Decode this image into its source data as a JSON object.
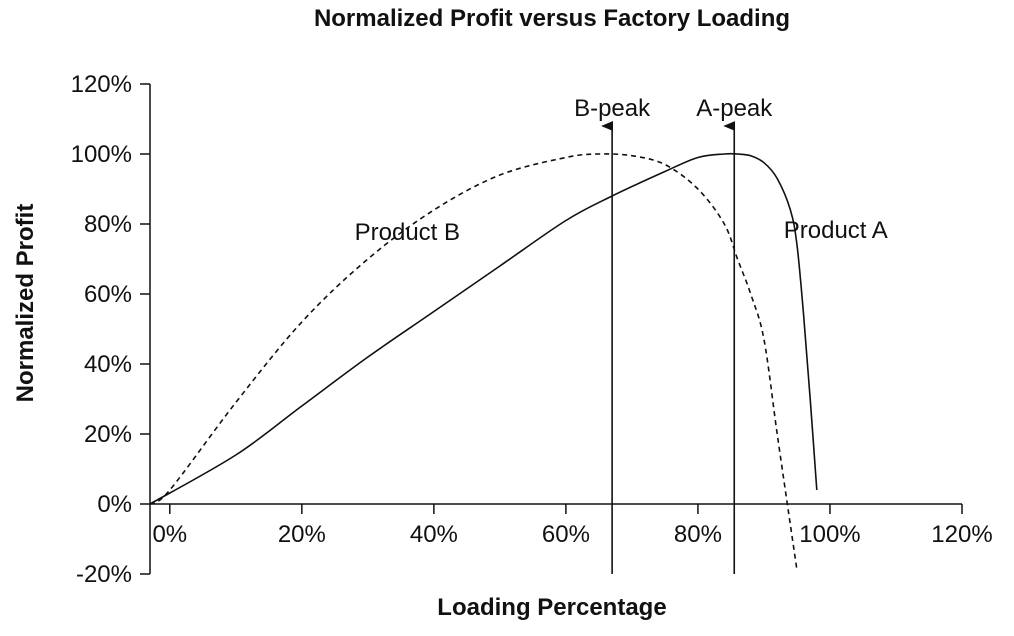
{
  "chart_data": {
    "type": "line",
    "title": "Normalized Profit versus Factory Loading",
    "xlabel": "Loading Percentage",
    "ylabel": "Normalized Profit",
    "xlim": [
      -0.03,
      1.2
    ],
    "ylim": [
      -0.2,
      1.2
    ],
    "x_ticks": [
      0,
      0.2,
      0.4,
      0.6,
      0.8,
      1.0,
      1.2
    ],
    "x_tick_labels": [
      "0%",
      "20%",
      "40%",
      "60%",
      "80%",
      "100%",
      "120%"
    ],
    "y_ticks": [
      -0.2,
      0,
      0.2,
      0.4,
      0.6,
      0.8,
      1.0,
      1.2
    ],
    "y_tick_labels": [
      "-20%",
      "0%",
      "20%",
      "40%",
      "60%",
      "80%",
      "100%",
      "120%"
    ],
    "grid": false,
    "series": [
      {
        "name": "Product A",
        "style": "solid",
        "color": "#111111",
        "x": [
          -0.03,
          0.1,
          0.2,
          0.3,
          0.4,
          0.5,
          0.6,
          0.67,
          0.75,
          0.8,
          0.84,
          0.86,
          0.88,
          0.9,
          0.92,
          0.94,
          0.95,
          0.96,
          0.97,
          0.98
        ],
        "y": [
          0.0,
          0.14,
          0.28,
          0.42,
          0.55,
          0.68,
          0.81,
          0.88,
          0.95,
          0.99,
          1.0,
          1.0,
          0.995,
          0.975,
          0.93,
          0.84,
          0.74,
          0.54,
          0.3,
          0.04
        ]
      },
      {
        "name": "Product B",
        "style": "dashed",
        "color": "#111111",
        "x": [
          -0.03,
          0.0,
          0.1,
          0.2,
          0.3,
          0.4,
          0.5,
          0.6,
          0.65,
          0.7,
          0.75,
          0.8,
          0.84,
          0.86,
          0.88,
          0.9,
          0.92,
          0.94,
          0.95
        ],
        "y": [
          0.0,
          0.04,
          0.29,
          0.52,
          0.7,
          0.84,
          0.94,
          0.99,
          1.0,
          0.995,
          0.97,
          0.9,
          0.8,
          0.7,
          0.6,
          0.47,
          0.2,
          -0.06,
          -0.19
        ]
      }
    ],
    "series_labels": [
      {
        "text": "Product A",
        "x": 0.93,
        "y": 0.76
      },
      {
        "text": "Product B",
        "x": 0.28,
        "y": 0.755
      }
    ],
    "markers": [
      {
        "text": "B-peak",
        "x": 0.67,
        "y_from": -0.2,
        "y_to": 1.08
      },
      {
        "text": "A-peak",
        "x": 0.855,
        "y_from": -0.2,
        "y_to": 1.08
      }
    ]
  }
}
